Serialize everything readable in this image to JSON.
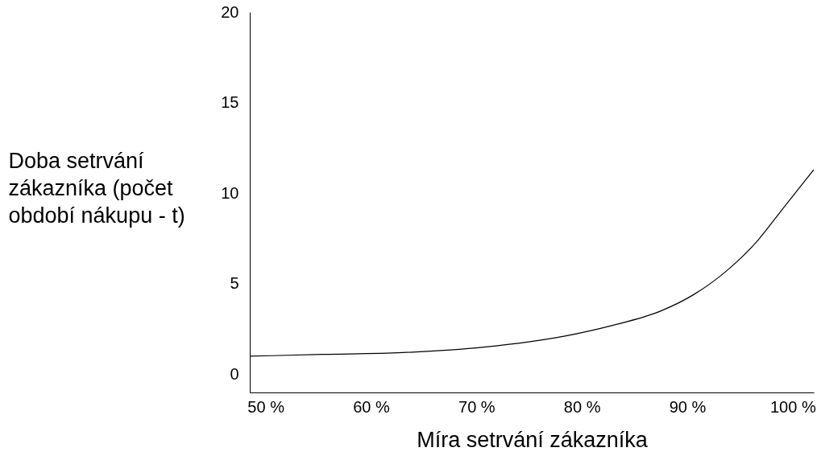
{
  "chart_data": {
    "type": "line",
    "xlabel": "Míra setrvání zákazníka",
    "ylabel": "Doba setrvání zákazníka (počet období nákupu - t)",
    "x": [
      48.5,
      55.4,
      63,
      70.7,
      78.3,
      82.9,
      87.5,
      90.6,
      93.7,
      96.7,
      99,
      102
    ],
    "series": [
      {
        "color": "#000000",
        "values": [
          1.0,
          1.1,
          1.2,
          1.5,
          2.1,
          2.7,
          3.5,
          4.4,
          5.7,
          7.4,
          9.1,
          11.3
        ]
      }
    ],
    "xlim": [
      48.5,
      102
    ],
    "xticks": [
      {
        "value": 50,
        "label": "50 %"
      },
      {
        "value": 60,
        "label": "60 %"
      },
      {
        "value": 70,
        "label": "70 %"
      },
      {
        "value": 80,
        "label": "80 %"
      },
      {
        "value": 90,
        "label": "90 %"
      },
      {
        "value": 100,
        "label": "100 %"
      }
    ],
    "ylim": [
      -1,
      20
    ],
    "yticks": [
      0,
      5,
      10,
      15,
      20
    ],
    "grid": false,
    "marker": "none",
    "line_style": "solid"
  }
}
